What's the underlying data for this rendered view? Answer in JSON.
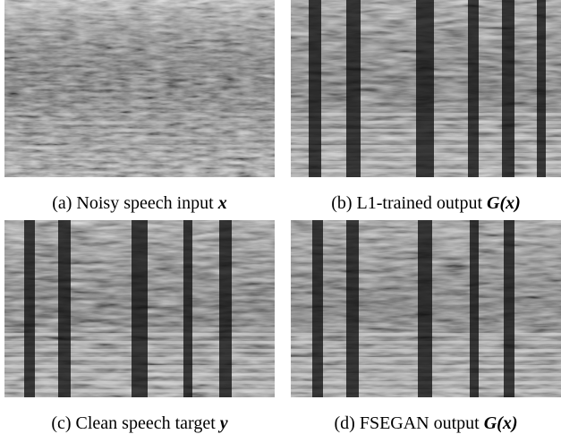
{
  "panels": [
    {
      "label": "(a) Noisy speech input",
      "math": "x"
    },
    {
      "label": "(b) L1-trained output",
      "math": "G(x)"
    },
    {
      "label": "(c) Clean speech target",
      "math": "y"
    },
    {
      "label": "(d) FSEGAN output",
      "math": "G(x)"
    }
  ]
}
